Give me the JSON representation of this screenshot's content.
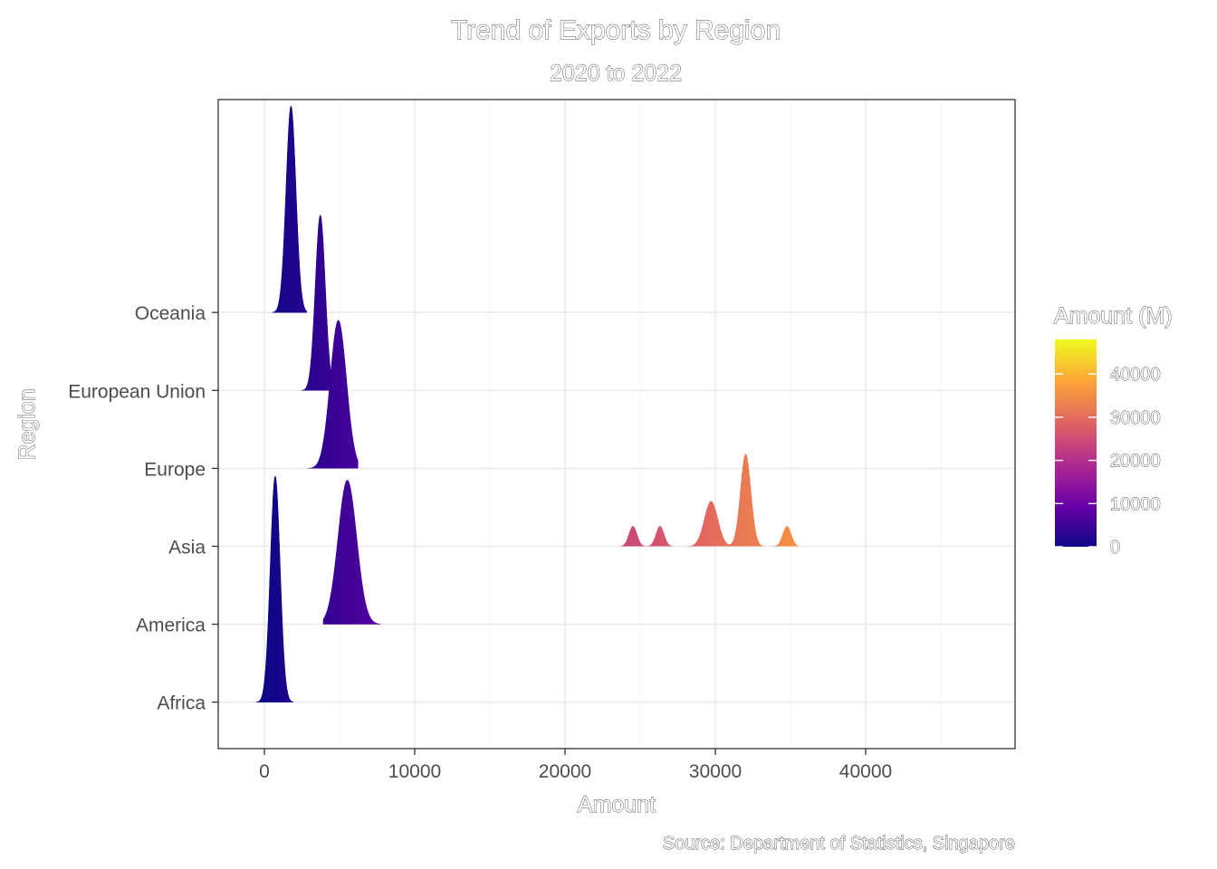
{
  "chart_data": {
    "type": "ridgeline",
    "title": "Trend of Exports by Region",
    "subtitle": "2020 to 2022",
    "xlabel": "Amount",
    "ylabel": "Region",
    "caption": "Source: Department of Statistics, Singapore",
    "xlim": [
      -3100,
      49000
    ],
    "x_ticks": [
      0,
      10000,
      20000,
      30000,
      40000
    ],
    "categories": [
      "Africa",
      "America",
      "Asia",
      "Europe",
      "European Union",
      "Oceania"
    ],
    "colorbar": {
      "title": "Amount (M)",
      "range": [
        0,
        48000
      ],
      "ticks": [
        0,
        10000,
        20000,
        30000,
        40000
      ],
      "palette": [
        "#0d0887",
        "#6a00a8",
        "#b12a90",
        "#e16462",
        "#fca636",
        "#f0f921"
      ]
    },
    "series": [
      {
        "region": "Africa",
        "range": [
          -600,
          1900
        ],
        "peaks": [
          {
            "center": 700,
            "sd": 330,
            "height": 2.9
          }
        ]
      },
      {
        "region": "America",
        "range": [
          3900,
          7700
        ],
        "peaks": [
          {
            "center": 5500,
            "sd": 620,
            "height": 1.85
          }
        ]
      },
      {
        "region": "Asia",
        "range": [
          23700,
          35500
        ],
        "peaks": [
          {
            "center": 24500,
            "sd": 270,
            "height": 0.26
          },
          {
            "center": 26300,
            "sd": 270,
            "height": 0.26
          },
          {
            "center": 29700,
            "sd": 450,
            "height": 0.58
          },
          {
            "center": 32000,
            "sd": 350,
            "height": 1.19
          },
          {
            "center": 34750,
            "sd": 280,
            "height": 0.26
          }
        ]
      },
      {
        "region": "Europe",
        "range": [
          2800,
          6200
        ],
        "peaks": [
          {
            "center": 4900,
            "sd": 540,
            "height": 1.9
          }
        ]
      },
      {
        "region": "European Union",
        "range": [
          2300,
          4400
        ],
        "peaks": [
          {
            "center": 3700,
            "sd": 330,
            "height": 2.25
          }
        ]
      },
      {
        "region": "Oceania",
        "range": [
          500,
          2800
        ],
        "peaks": [
          {
            "center": 1750,
            "sd": 330,
            "height": 2.65
          }
        ]
      }
    ]
  }
}
